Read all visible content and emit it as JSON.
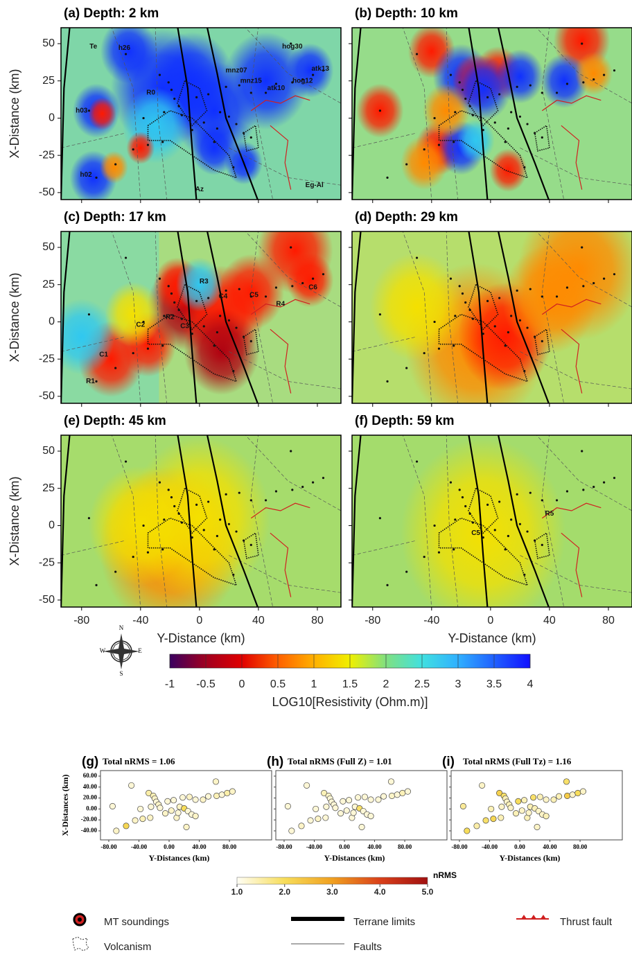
{
  "maps": {
    "panels": [
      {
        "title": "(a) Depth: 2 km",
        "labels": [
          "Te",
          "Az",
          "Eg-Al",
          "R0",
          "h02",
          "h03",
          "h26",
          "hog30",
          "atk13",
          "hog12",
          "atk10",
          "mnz07",
          "mnz15"
        ]
      },
      {
        "title": "(b) Depth: 10 km"
      },
      {
        "title": "(c) Depth: 17 km",
        "labels": [
          "C1",
          "C2",
          "C3",
          "C4",
          "C5",
          "C6",
          "R1",
          "R2",
          "R3",
          "R4"
        ]
      },
      {
        "title": "(d) Depth: 29 km"
      },
      {
        "title": "(e) Depth: 45 km"
      },
      {
        "title": "(f) Depth: 59 km",
        "labels": [
          "C5",
          "R5"
        ]
      }
    ],
    "x_label": "Y-Distance (km)",
    "y_label": "X-Distance (km)",
    "xlim": [
      -94,
      96
    ],
    "ylim": [
      -54.7,
      60.7
    ],
    "xticks": [
      -80,
      -40,
      0,
      40,
      80
    ],
    "yticks": [
      50,
      25,
      0,
      -25,
      -50
    ]
  },
  "colorbar": {
    "label": "LOG10[Resistivity (Ohm.m)]",
    "lim": [
      -1,
      4
    ],
    "ticks": [
      -1,
      -0.5,
      0,
      0.5,
      1,
      1.5,
      2,
      2.5,
      3,
      3.5,
      4
    ]
  },
  "compass": [
    "N",
    "E",
    "S",
    "W"
  ],
  "rms": {
    "panels": [
      {
        "label": "(g)",
        "title": "Total nRMS = 1.06",
        "values": [
          1.2,
          1.3,
          2.1,
          1.2,
          1.3,
          1.2,
          1.4,
          1.5,
          1.3,
          1.2,
          1.4,
          1.3,
          1.2,
          1.3,
          1.2,
          1.3,
          1.2,
          1.3,
          1.2,
          1.3,
          1.2,
          1.3,
          1.2,
          2.0,
          1.3,
          1.2,
          1.3,
          1.2,
          1.3,
          1.2,
          1.3,
          1.2,
          1.3,
          1.4,
          1.2,
          1.5,
          1.3
        ]
      },
      {
        "label": "(h)",
        "title": "Total nRMS (Full Z) = 1.01",
        "values": [
          1.2,
          1.2,
          1.3,
          1.2,
          1.2,
          1.2,
          1.3,
          1.4,
          1.2,
          1.2,
          1.3,
          1.2,
          1.2,
          1.2,
          1.2,
          1.2,
          1.2,
          1.2,
          1.2,
          1.2,
          1.2,
          1.2,
          1.2,
          1.9,
          1.2,
          1.2,
          1.2,
          1.2,
          1.2,
          1.2,
          1.2,
          1.2,
          1.2,
          1.3,
          1.2,
          1.4,
          1.2
        ]
      },
      {
        "label": "(i)",
        "title": "Total nRMS (Full Tz) = 1.16",
        "values": [
          1.6,
          2.0,
          1.5,
          1.3,
          1.9,
          1.4,
          2.1,
          2.2,
          1.4,
          1.3,
          1.9,
          1.4,
          1.3,
          1.4,
          1.3,
          1.4,
          2.0,
          1.3,
          1.4,
          1.4,
          1.3,
          1.4,
          1.9,
          1.4,
          1.3,
          1.3,
          1.4,
          1.3,
          1.4,
          1.3,
          1.4,
          1.4,
          1.9,
          2.3,
          1.3,
          2.0,
          1.3
        ]
      }
    ],
    "x_label": "Y-Distances (km)",
    "y_label": "X-Distances (km)",
    "stations_y": [
      -75,
      -70,
      -57,
      -50,
      -45,
      -38,
      -35,
      -27,
      -25,
      -24,
      -21,
      -19,
      -17,
      -14,
      -12,
      -5,
      -2,
      3,
      6,
      10,
      12,
      14,
      18,
      20,
      23,
      25,
      27,
      30,
      35,
      35,
      45,
      52,
      62,
      63,
      70,
      77,
      84
    ],
    "stations_x": [
      5,
      -40,
      -31,
      43,
      -21,
      0,
      -18,
      29,
      -16,
      4,
      24,
      19,
      13,
      8,
      2,
      -8,
      14,
      -3,
      16,
      -16,
      -7,
      4,
      21,
      1,
      -33,
      -4,
      22,
      -10,
      -13,
      17,
      17,
      23,
      50,
      24,
      26,
      29,
      32
    ],
    "xlim": [
      -91,
      136
    ],
    "ylim": [
      -56.5,
      70.1
    ],
    "xticks": [
      {
        "value": -80,
        "label": "-80.00"
      },
      {
        "value": -40,
        "label": "-40.00"
      },
      {
        "value": 0,
        "label": "0.00"
      },
      {
        "value": 40,
        "label": "40.00"
      },
      {
        "value": 80,
        "label": "80.00"
      }
    ],
    "yticks": [
      {
        "value": 60,
        "label": "60.00"
      },
      {
        "value": 40,
        "label": "40.00"
      },
      {
        "value": 20,
        "label": "20.00"
      },
      {
        "value": 0,
        "label": "0.00"
      },
      {
        "value": -20,
        "label": "-20.00"
      },
      {
        "value": -40,
        "label": "-40.00"
      }
    ],
    "colorbar": {
      "label": "nRMS",
      "lim": [
        1,
        5
      ],
      "ticks": [
        {
          "value": 1,
          "label": "1.0"
        },
        {
          "value": 2,
          "label": "2.0"
        },
        {
          "value": 3,
          "label": "3.0"
        },
        {
          "value": 4,
          "label": "4.0"
        },
        {
          "value": 5,
          "label": "5.0"
        }
      ]
    }
  },
  "legend": [
    "MT soundings",
    "Volcanism",
    "Terrane limits",
    "Faults",
    "Thrust fault"
  ]
}
